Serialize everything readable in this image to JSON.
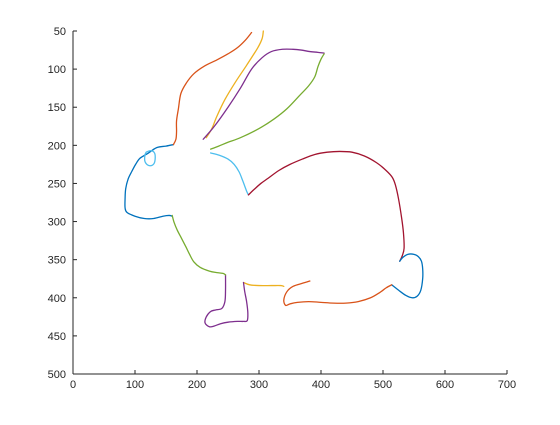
{
  "colors": {
    "axis": "#262626",
    "blue": "#0072BD",
    "orange": "#D95319",
    "yellow": "#EDB120",
    "purple": "#7E2F8E",
    "green": "#77AC30",
    "cyan": "#4DBEEE",
    "red": "#A2142F"
  },
  "chart_data": {
    "type": "line",
    "title": "",
    "xlabel": "",
    "ylabel": "",
    "xlim": [
      0,
      700
    ],
    "ylim": [
      50,
      500
    ],
    "y_reversed": true,
    "grid": false,
    "legend": "none",
    "x_ticks": [
      "0",
      "100",
      "200",
      "300",
      "400",
      "500",
      "600",
      "700"
    ],
    "y_ticks": [
      "50",
      "100",
      "150",
      "200",
      "250",
      "300",
      "350",
      "400",
      "450",
      "500"
    ],
    "series": [
      {
        "color": "blue",
        "points": [
          [
            162,
            199
          ],
          [
            150,
            201
          ],
          [
            135,
            203
          ],
          [
            120,
            211
          ],
          [
            108,
            217
          ],
          [
            101,
            225
          ],
          [
            95,
            234
          ],
          [
            89,
            244
          ],
          [
            85,
            257
          ],
          [
            84,
            270
          ],
          [
            84,
            282
          ],
          [
            87,
            288
          ],
          [
            100,
            293
          ],
          [
            115,
            296
          ],
          [
            130,
            296
          ],
          [
            145,
            293
          ],
          [
            155,
            292
          ],
          [
            160,
            293
          ]
        ]
      },
      {
        "color": "orange",
        "points": [
          [
            162,
            199
          ],
          [
            166,
            192
          ],
          [
            167,
            182
          ],
          [
            167,
            168
          ],
          [
            170,
            152
          ],
          [
            174,
            132
          ],
          [
            183,
            118
          ],
          [
            195,
            106
          ],
          [
            212,
            96
          ],
          [
            232,
            88
          ],
          [
            250,
            80
          ],
          [
            265,
            72
          ],
          [
            278,
            62
          ],
          [
            288,
            52
          ]
        ]
      },
      {
        "color": "yellow",
        "points": [
          [
            307,
            50
          ],
          [
            305,
            60
          ],
          [
            298,
            72
          ],
          [
            280,
            95
          ],
          [
            262,
            117
          ],
          [
            245,
            140
          ],
          [
            232,
            162
          ],
          [
            224,
            178
          ],
          [
            215,
            190
          ]
        ]
      },
      {
        "color": "purple",
        "points": [
          [
            210,
            192
          ],
          [
            228,
            175
          ],
          [
            250,
            150
          ],
          [
            270,
            125
          ],
          [
            288,
            100
          ],
          [
            305,
            85
          ],
          [
            320,
            77
          ],
          [
            338,
            74
          ],
          [
            355,
            74
          ],
          [
            368,
            75
          ],
          [
            382,
            77
          ],
          [
            395,
            78
          ],
          [
            405,
            79
          ]
        ]
      },
      {
        "color": "green",
        "points": [
          [
            405,
            80
          ],
          [
            400,
            87
          ],
          [
            395,
            97
          ],
          [
            390,
            110
          ],
          [
            380,
            122
          ],
          [
            365,
            135
          ],
          [
            345,
            152
          ],
          [
            325,
            165
          ],
          [
            300,
            178
          ],
          [
            270,
            190
          ],
          [
            250,
            196
          ],
          [
            235,
            201
          ],
          [
            222,
            205
          ]
        ]
      },
      {
        "color": "cyan",
        "points": [
          [
            222,
            210
          ],
          [
            236,
            213
          ],
          [
            250,
            218
          ],
          [
            260,
            225
          ],
          [
            268,
            235
          ],
          [
            274,
            247
          ],
          [
            280,
            260
          ],
          [
            283,
            265
          ]
        ]
      },
      {
        "color": "red",
        "points": [
          [
            283,
            265
          ],
          [
            292,
            258
          ],
          [
            303,
            250
          ],
          [
            315,
            243
          ],
          [
            332,
            233
          ],
          [
            350,
            225
          ],
          [
            370,
            218
          ],
          [
            390,
            212
          ],
          [
            410,
            209
          ],
          [
            430,
            208
          ],
          [
            450,
            209
          ],
          [
            470,
            214
          ],
          [
            490,
            223
          ],
          [
            505,
            233
          ],
          [
            515,
            242
          ],
          [
            520,
            252
          ],
          [
            525,
            270
          ],
          [
            530,
            295
          ],
          [
            533,
            315
          ],
          [
            534,
            335
          ],
          [
            531,
            345
          ],
          [
            527,
            352
          ]
        ]
      },
      {
        "color": "blue",
        "points": [
          [
            527,
            352
          ],
          [
            532,
            347
          ],
          [
            540,
            343
          ],
          [
            550,
            343
          ],
          [
            557,
            346
          ],
          [
            562,
            352
          ],
          [
            564,
            362
          ],
          [
            564,
            375
          ],
          [
            561,
            390
          ],
          [
            555,
            398
          ],
          [
            547,
            400
          ],
          [
            537,
            397
          ],
          [
            525,
            390
          ],
          [
            514,
            383
          ]
        ]
      },
      {
        "color": "orange",
        "points": [
          [
            514,
            383
          ],
          [
            505,
            387
          ],
          [
            495,
            393
          ],
          [
            480,
            400
          ],
          [
            460,
            405
          ],
          [
            440,
            407
          ],
          [
            420,
            407
          ],
          [
            400,
            406
          ],
          [
            380,
            405
          ],
          [
            362,
            406
          ],
          [
            350,
            408
          ],
          [
            343,
            410
          ],
          [
            340,
            403
          ],
          [
            345,
            392
          ],
          [
            355,
            385
          ],
          [
            370,
            381
          ],
          [
            382,
            378
          ]
        ]
      },
      {
        "color": "yellow",
        "points": [
          [
            340,
            385
          ],
          [
            335,
            384
          ],
          [
            320,
            384
          ],
          [
            300,
            384
          ],
          [
            285,
            383
          ],
          [
            275,
            380
          ]
        ]
      },
      {
        "color": "purple",
        "points": [
          [
            275,
            380
          ],
          [
            277,
            392
          ],
          [
            280,
            405
          ],
          [
            282,
            420
          ],
          [
            281,
            430
          ],
          [
            275,
            431
          ],
          [
            265,
            431
          ],
          [
            250,
            432
          ],
          [
            238,
            434
          ],
          [
            228,
            437
          ],
          [
            220,
            438
          ],
          [
            213,
            433
          ],
          [
            215,
            425
          ],
          [
            222,
            418
          ],
          [
            230,
            416
          ],
          [
            240,
            414
          ],
          [
            245,
            405
          ],
          [
            246,
            390
          ],
          [
            246,
            370
          ]
        ]
      },
      {
        "color": "green",
        "points": [
          [
            246,
            370
          ],
          [
            242,
            368
          ],
          [
            232,
            367
          ],
          [
            220,
            365
          ],
          [
            205,
            360
          ],
          [
            195,
            353
          ],
          [
            188,
            343
          ],
          [
            182,
            333
          ],
          [
            175,
            322
          ],
          [
            168,
            311
          ],
          [
            163,
            301
          ],
          [
            160,
            292
          ]
        ]
      }
    ],
    "eye": {
      "color": "cyan",
      "points": [
        [
          118,
          209
        ],
        [
          126,
          207
        ],
        [
          132,
          211
        ],
        [
          132,
          221
        ],
        [
          128,
          226
        ],
        [
          121,
          226
        ],
        [
          116,
          221
        ],
        [
          116,
          213
        ],
        [
          118,
          209
        ]
      ]
    }
  }
}
